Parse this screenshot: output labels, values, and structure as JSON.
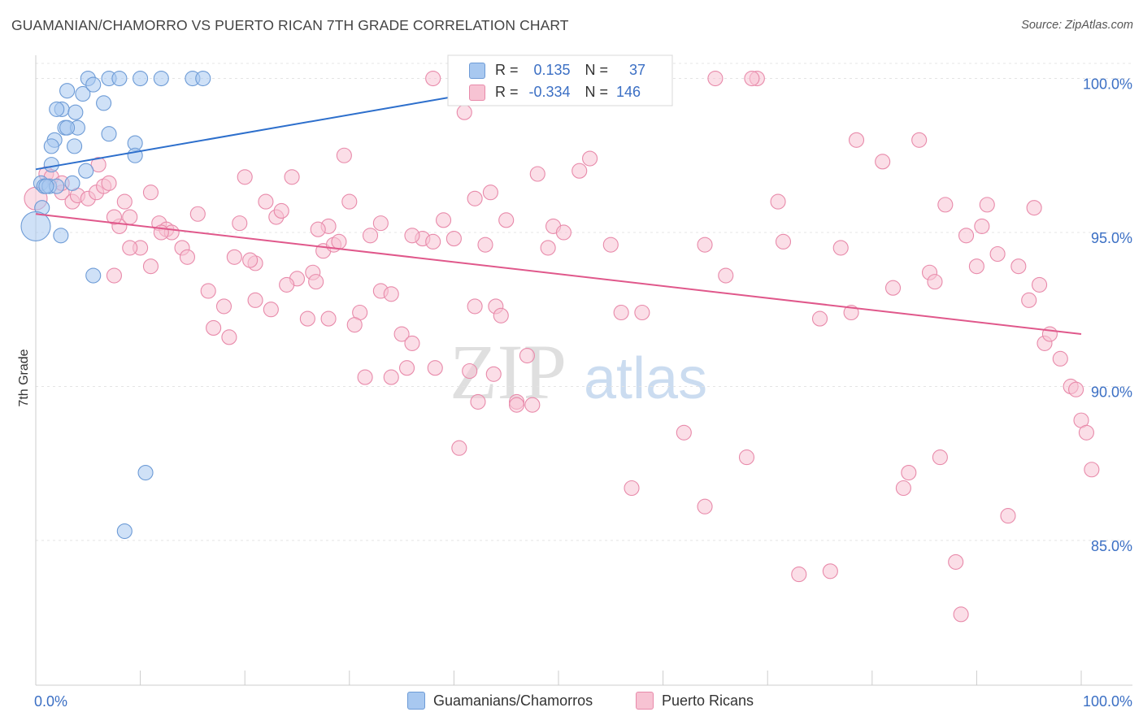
{
  "title": "GUAMANIAN/CHAMORRO VS PUERTO RICAN 7TH GRADE CORRELATION CHART",
  "source": "Source: ZipAtlas.com",
  "watermark": {
    "zip": "ZIP",
    "atlas": "atlas"
  },
  "legend": {
    "r_label": "R =",
    "n_label": "N =",
    "series1": {
      "r": "0.135",
      "n": "37"
    },
    "series2": {
      "r": "-0.334",
      "n": "146"
    }
  },
  "bottom_legend": {
    "series1": "Guamanians/Chamorros",
    "series2": "Puerto Ricans"
  },
  "chart_data": {
    "type": "scatter",
    "title": "GUAMANIAN/CHAMORRO VS PUERTO RICAN 7TH GRADE CORRELATION CHART",
    "xlabel": "",
    "ylabel": "7th Grade",
    "xlim": [
      0,
      100
    ],
    "ylim": [
      80.3,
      100.7
    ],
    "x_tick_labels": {
      "left": "0.0%",
      "right": "100.0%"
    },
    "y_ticks": [
      {
        "value": 100,
        "label": "100.0%"
      },
      {
        "value": 95,
        "label": "95.0%"
      },
      {
        "value": 90,
        "label": "90.0%"
      },
      {
        "value": 85,
        "label": "85.0%"
      }
    ],
    "grid": true,
    "colors": {
      "series1_fill": "#a8c8f0",
      "series1_stroke": "#6d9bd6",
      "series1_line": "#2d6fcc",
      "series2_fill": "#f7c3d3",
      "series2_stroke": "#e88aaa",
      "series2_line": "#e0588b",
      "axis_label": "#3b6fc4"
    },
    "series": [
      {
        "name": "Guamanians/Chamorros",
        "trend": {
          "x": [
            0,
            50
          ],
          "y": [
            97.05,
            100.0
          ]
        },
        "points": [
          [
            5,
            100
          ],
          [
            7,
            100
          ],
          [
            8,
            100
          ],
          [
            10,
            100
          ],
          [
            15,
            100
          ],
          [
            16,
            100
          ],
          [
            3,
            99.6
          ],
          [
            4.5,
            99.5
          ],
          [
            5.5,
            99.8
          ],
          [
            6.5,
            99.2
          ],
          [
            2.5,
            99.0
          ],
          [
            3.8,
            98.9
          ],
          [
            2.8,
            98.4
          ],
          [
            1.8,
            98.0
          ],
          [
            4,
            98.4
          ],
          [
            7,
            98.2
          ],
          [
            9.5,
            97.9
          ],
          [
            1.5,
            97.8
          ],
          [
            3.7,
            97.8
          ],
          [
            9.5,
            97.5
          ],
          [
            1.5,
            97.2
          ],
          [
            4.8,
            97.0
          ],
          [
            0.5,
            96.6
          ],
          [
            0.8,
            96.5
          ],
          [
            1.3,
            96.5
          ],
          [
            2,
            96.5
          ],
          [
            3.5,
            96.6
          ],
          [
            0.6,
            95.8
          ],
          [
            0,
            95.2
          ],
          [
            2.4,
            94.9
          ],
          [
            5.5,
            93.6
          ],
          [
            10.5,
            87.2
          ],
          [
            8.5,
            85.3
          ],
          [
            1,
            96.5
          ],
          [
            2,
            99.0
          ],
          [
            3,
            98.4
          ],
          [
            12,
            100
          ]
        ]
      },
      {
        "name": "Puerto Ricans",
        "trend": {
          "x": [
            0,
            100
          ],
          "y": [
            95.6,
            91.7
          ]
        },
        "points": [
          [
            0,
            96.1
          ],
          [
            1,
            96.9
          ],
          [
            1.5,
            96.8
          ],
          [
            2.5,
            96.3
          ],
          [
            3.5,
            96.0
          ],
          [
            4,
            96.2
          ],
          [
            5,
            96.1
          ],
          [
            5.8,
            96.3
          ],
          [
            6.5,
            96.5
          ],
          [
            7,
            96.6
          ],
          [
            8,
            95.2
          ],
          [
            9,
            95.5
          ],
          [
            8.5,
            96.0
          ],
          [
            10,
            94.5
          ],
          [
            11,
            96.3
          ],
          [
            11.8,
            95.3
          ],
          [
            12.5,
            95.1
          ],
          [
            13,
            95.0
          ],
          [
            14,
            94.5
          ],
          [
            14.5,
            94.2
          ],
          [
            15.5,
            95.6
          ],
          [
            16.5,
            93.1
          ],
          [
            18,
            92.6
          ],
          [
            19,
            94.2
          ],
          [
            19.5,
            95.3
          ],
          [
            20,
            96.8
          ],
          [
            21,
            94.0
          ],
          [
            22,
            96.0
          ],
          [
            23,
            95.5
          ],
          [
            23.5,
            95.7
          ],
          [
            24.5,
            96.8
          ],
          [
            25,
            93.5
          ],
          [
            26,
            92.2
          ],
          [
            26.5,
            93.7
          ],
          [
            27.5,
            94.4
          ],
          [
            28,
            95.2
          ],
          [
            28.5,
            94.6
          ],
          [
            29.5,
            97.5
          ],
          [
            30,
            96.0
          ],
          [
            31,
            92.4
          ],
          [
            32,
            94.9
          ],
          [
            33,
            93.1
          ],
          [
            34,
            93.0
          ],
          [
            35,
            91.7
          ],
          [
            36,
            91.4
          ],
          [
            37,
            94.8
          ],
          [
            38,
            94.7
          ],
          [
            39,
            95.4
          ],
          [
            40,
            94.8
          ],
          [
            41,
            98.9
          ],
          [
            42,
            96.1
          ],
          [
            43,
            94.6
          ],
          [
            43.5,
            96.3
          ],
          [
            44,
            92.6
          ],
          [
            46,
            89.5
          ],
          [
            47,
            91.0
          ],
          [
            47.5,
            89.4
          ],
          [
            49,
            94.5
          ],
          [
            49.5,
            95.2
          ],
          [
            50.5,
            95.0
          ],
          [
            52,
            97.0
          ],
          [
            53,
            97.4
          ],
          [
            35.5,
            90.6
          ],
          [
            38.2,
            90.6
          ],
          [
            34,
            90.3
          ],
          [
            40.5,
            88.0
          ],
          [
            43.8,
            90.4
          ],
          [
            57,
            86.7
          ],
          [
            58,
            92.4
          ],
          [
            62,
            88.5
          ],
          [
            64,
            86.1
          ],
          [
            64,
            94.6
          ],
          [
            66,
            93.6
          ],
          [
            68,
            87.7
          ],
          [
            69,
            100
          ],
          [
            71,
            96.0
          ],
          [
            71.5,
            94.7
          ],
          [
            73,
            83.9
          ],
          [
            75,
            92.2
          ],
          [
            76,
            84.0
          ],
          [
            77,
            94.5
          ],
          [
            78,
            92.4
          ],
          [
            78.5,
            98.0
          ],
          [
            81,
            97.3
          ],
          [
            82,
            93.2
          ],
          [
            83,
            86.7
          ],
          [
            83.5,
            87.2
          ],
          [
            84.5,
            98.0
          ],
          [
            85.5,
            93.7
          ],
          [
            86,
            93.4
          ],
          [
            86.5,
            87.7
          ],
          [
            87,
            95.9
          ],
          [
            88,
            84.3
          ],
          [
            88.5,
            82.6
          ],
          [
            89,
            94.9
          ],
          [
            90,
            93.9
          ],
          [
            91,
            95.9
          ],
          [
            92,
            94.3
          ],
          [
            93,
            85.8
          ],
          [
            94,
            93.9
          ],
          [
            95,
            92.8
          ],
          [
            95.5,
            95.8
          ],
          [
            96,
            93.3
          ],
          [
            96.5,
            91.4
          ],
          [
            97,
            91.7
          ],
          [
            98,
            90.9
          ],
          [
            99,
            90.0
          ],
          [
            99.5,
            89.9
          ],
          [
            100,
            88.9
          ],
          [
            100.5,
            88.5
          ],
          [
            101,
            87.3
          ],
          [
            90.5,
            95.2
          ],
          [
            38,
            100
          ],
          [
            68.5,
            100
          ],
          [
            60,
            100
          ],
          [
            65,
            100
          ],
          [
            9,
            94.5
          ],
          [
            20.5,
            94.1
          ],
          [
            27,
            95.1
          ],
          [
            33,
            95.3
          ],
          [
            45,
            95.4
          ],
          [
            55,
            94.6
          ],
          [
            48,
            96.9
          ],
          [
            6,
            97.2
          ],
          [
            2.5,
            96.6
          ],
          [
            7.5,
            95.5
          ],
          [
            12,
            95.0
          ],
          [
            29,
            94.7
          ],
          [
            36,
            94.9
          ],
          [
            18.5,
            91.6
          ],
          [
            22.5,
            92.5
          ],
          [
            26.8,
            93.4
          ],
          [
            44.5,
            92.3
          ],
          [
            11,
            93.9
          ],
          [
            7.5,
            93.6
          ],
          [
            17,
            91.9
          ],
          [
            21,
            92.8
          ],
          [
            24,
            93.3
          ],
          [
            56,
            92.4
          ],
          [
            28,
            92.2
          ],
          [
            30.5,
            92.0
          ],
          [
            42.3,
            89.5
          ],
          [
            46,
            89.4
          ],
          [
            41.5,
            90.5
          ],
          [
            31.5,
            90.3
          ],
          [
            42,
            92.6
          ]
        ]
      }
    ]
  }
}
